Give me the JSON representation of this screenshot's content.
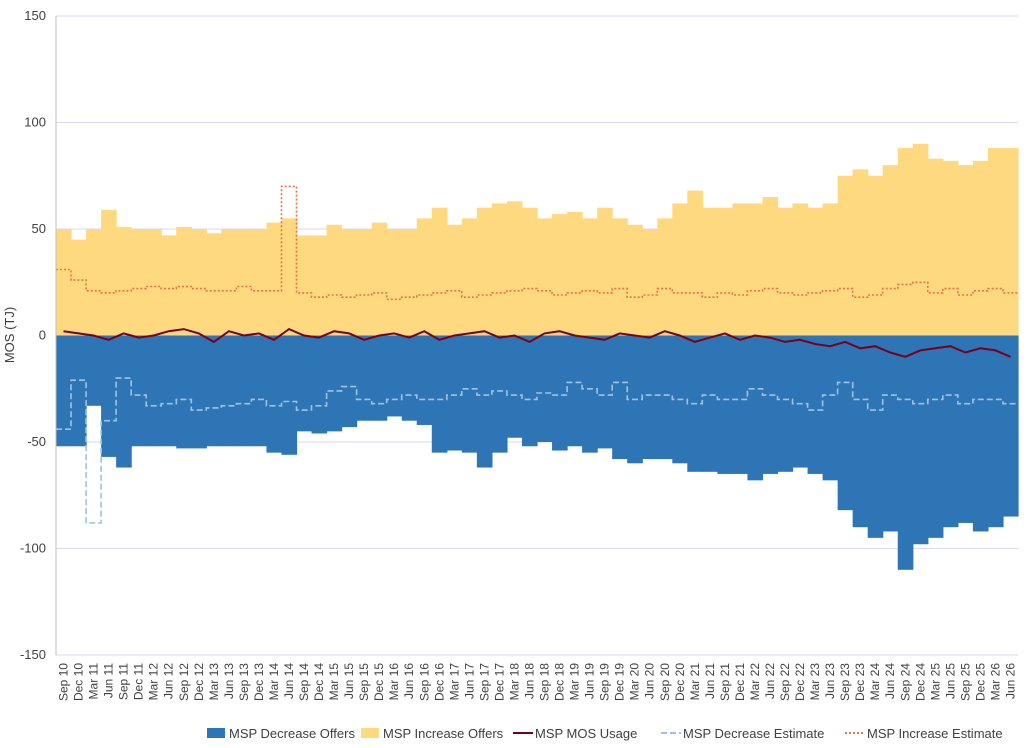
{
  "chart_data": {
    "type": "bar",
    "title": "",
    "xlabel": "",
    "ylabel": "MOS (TJ)",
    "ylim": [
      -150,
      150
    ],
    "yticks": [
      -150,
      -100,
      -50,
      0,
      50,
      100,
      150
    ],
    "grid": true,
    "legend_position": "bottom-right",
    "colors": {
      "decrease_offers": "#2e75b6",
      "increase_offers": "#ffd97f",
      "mos_usage": "#7a0019",
      "decrease_estimate": "#9dc3e6",
      "increase_estimate": "#e8734a",
      "grid": "#d9d9f2"
    },
    "categories": [
      "Sep 10",
      "Dec 10",
      "Mar 11",
      "Jun 11",
      "Sep 11",
      "Dec 11",
      "Mar 12",
      "Jun 12",
      "Sep 12",
      "Dec 12",
      "Mar 13",
      "Jun 13",
      "Sep 13",
      "Dec 13",
      "Mar 14",
      "Jun 14",
      "Sep 14",
      "Dec 14",
      "Mar 15",
      "Jun 15",
      "Sep 15",
      "Dec 15",
      "Mar 16",
      "Jun 16",
      "Sep 16",
      "Dec 16",
      "Mar 17",
      "Jun 17",
      "Sep 17",
      "Dec 17",
      "Mar 18",
      "Jun 18",
      "Sep 18",
      "Dec 18",
      "Mar 19",
      "Jun 19",
      "Sep 19",
      "Dec 19",
      "Mar 20",
      "Jun 20",
      "Sep 20",
      "Dec 20",
      "Mar 21",
      "Jun 21",
      "Sep 21",
      "Dec 21",
      "Mar 22",
      "Jun 22",
      "Sep 22",
      "Dec 22",
      "Mar 23",
      "Jun 23",
      "Sep 23",
      "Dec 23",
      "Mar 24",
      "Jun 24",
      "Sep 24",
      "Dec 24",
      "Mar 25",
      "Jun 25",
      "Sep 25",
      "Dec 25",
      "Mar 26",
      "Jun 26"
    ],
    "series": [
      {
        "name": "MSP Decrease Offers",
        "kind": "bar",
        "values": [
          -52,
          -52,
          -33,
          -57,
          -62,
          -52,
          -52,
          -52,
          -53,
          -53,
          -52,
          -52,
          -52,
          -52,
          -55,
          -56,
          -45,
          -46,
          -45,
          -43,
          -40,
          -40,
          -38,
          -40,
          -42,
          -55,
          -54,
          -55,
          -62,
          -55,
          -48,
          -52,
          -50,
          -54,
          -52,
          -55,
          -53,
          -58,
          -60,
          -58,
          -58,
          -60,
          -64,
          -64,
          -65,
          -65,
          -68,
          -65,
          -64,
          -62,
          -65,
          -68,
          -82,
          -90,
          -95,
          -92,
          -110,
          -98,
          -95,
          -90,
          -88,
          -92,
          -90,
          -85
        ]
      },
      {
        "name": "MSP Increase Offers",
        "kind": "bar",
        "values": [
          50,
          45,
          50,
          59,
          51,
          50,
          50,
          47,
          51,
          50,
          48,
          50,
          50,
          50,
          53,
          55,
          47,
          47,
          52,
          50,
          50,
          53,
          50,
          50,
          55,
          60,
          52,
          55,
          60,
          62,
          63,
          60,
          55,
          57,
          58,
          55,
          60,
          55,
          52,
          50,
          55,
          62,
          68,
          60,
          60,
          62,
          62,
          65,
          60,
          62,
          60,
          62,
          75,
          78,
          75,
          80,
          88,
          90,
          83,
          82,
          80,
          82,
          88,
          88
        ]
      },
      {
        "name": "MSP MOS Usage",
        "kind": "line",
        "values": [
          2,
          1,
          0,
          -2,
          1,
          -1,
          0,
          2,
          3,
          1,
          -3,
          2,
          0,
          1,
          -2,
          3,
          0,
          -1,
          2,
          1,
          -2,
          0,
          1,
          -1,
          2,
          -2,
          0,
          1,
          2,
          -1,
          0,
          -3,
          1,
          2,
          0,
          -1,
          -2,
          1,
          0,
          -1,
          2,
          0,
          -3,
          -1,
          1,
          -2,
          0,
          -1,
          -3,
          -2,
          -4,
          -5,
          -3,
          -6,
          -5,
          -8,
          -10,
          -7,
          -6,
          -5,
          -8,
          -6,
          -7,
          -10
        ]
      },
      {
        "name": "MSP Decrease Estimate",
        "kind": "step",
        "values": [
          -44,
          -21,
          -88,
          -40,
          -20,
          -28,
          -33,
          -32,
          -30,
          -35,
          -34,
          -33,
          -32,
          -30,
          -33,
          -31,
          -35,
          -33,
          -26,
          -24,
          -30,
          -32,
          -30,
          -28,
          -30,
          -30,
          -28,
          -25,
          -28,
          -26,
          -28,
          -30,
          -27,
          -28,
          -22,
          -25,
          -28,
          -22,
          -30,
          -28,
          -28,
          -30,
          -32,
          -28,
          -30,
          -30,
          -25,
          -28,
          -30,
          -32,
          -35,
          -28,
          -22,
          -30,
          -35,
          -28,
          -30,
          -32,
          -30,
          -28,
          -32,
          -30,
          -30,
          -32
        ]
      },
      {
        "name": "MSP Increase Estimate",
        "kind": "step",
        "values": [
          31,
          26,
          21,
          20,
          21,
          22,
          23,
          22,
          23,
          22,
          21,
          21,
          23,
          21,
          21,
          70,
          20,
          18,
          19,
          18,
          19,
          20,
          17,
          18,
          19,
          20,
          21,
          18,
          19,
          20,
          21,
          22,
          21,
          19,
          20,
          21,
          20,
          22,
          18,
          19,
          22,
          20,
          20,
          18,
          20,
          19,
          21,
          22,
          20,
          19,
          20,
          21,
          22,
          18,
          19,
          22,
          24,
          25,
          20,
          22,
          19,
          21,
          22,
          20
        ]
      }
    ]
  }
}
